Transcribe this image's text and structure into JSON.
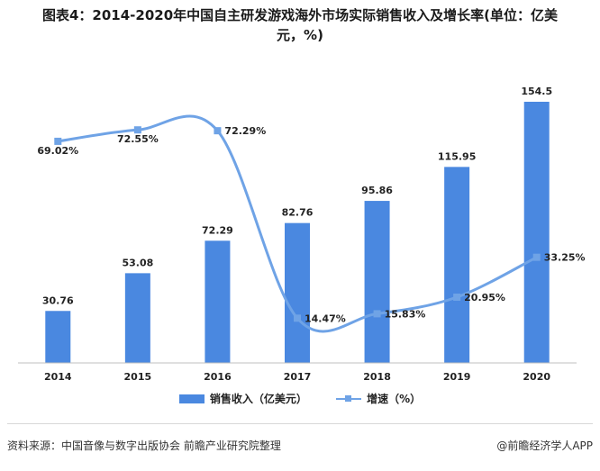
{
  "title": {
    "line1": "图表4：2014-2020年中国自主研发游戏海外市场实际销售收入及增长率(单位：亿美",
    "line2": "元，%)"
  },
  "footer": {
    "source": "资料来源：中国音像与数字出版协会 前瞻产业研究院整理",
    "brand": "@前瞻经济学人APP"
  },
  "colors": {
    "bar": "#4a88e0",
    "line": "#6fa3e6"
  },
  "chart_data": {
    "type": "bar",
    "categories": [
      "2014",
      "2015",
      "2016",
      "2017",
      "2018",
      "2019",
      "2020"
    ],
    "series": [
      {
        "name": "销售收入（亿美元）",
        "kind": "bar",
        "values": [
          30.76,
          53.08,
          72.29,
          82.76,
          95.86,
          115.95,
          154.5
        ],
        "labels": [
          "30.76",
          "53.08",
          "72.29",
          "82.76",
          "95.86",
          "115.95",
          "154.5"
        ]
      },
      {
        "name": "增速（%）",
        "kind": "line",
        "smooth": true,
        "values": [
          69.02,
          72.55,
          72.29,
          14.47,
          15.83,
          20.95,
          33.25
        ],
        "labels": [
          "69.02%",
          "72.55%",
          "72.29%",
          "14.47%",
          "15.83%",
          "20.95%",
          "33.25%"
        ]
      }
    ],
    "xlabel": "",
    "ylabel": "",
    "legend_position": "bottom",
    "grid": false
  }
}
